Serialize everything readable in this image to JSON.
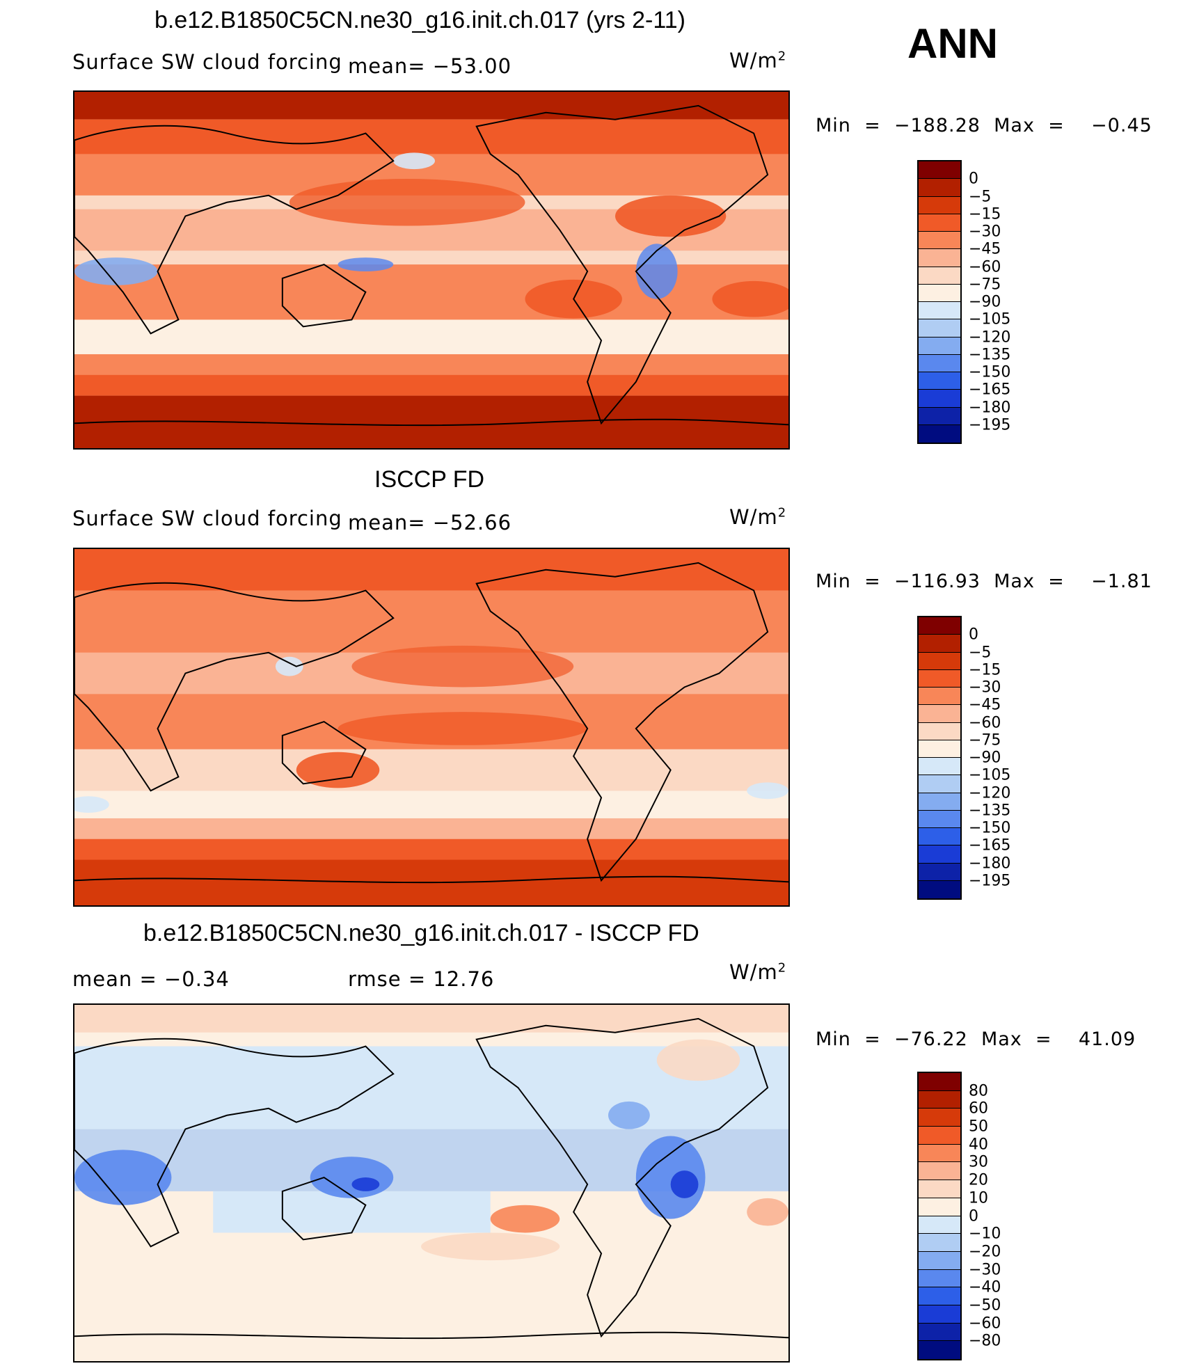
{
  "ann": "ANN",
  "units_base": "W/m",
  "units_exp": "2",
  "colors": {
    "abs_scale": [
      "#7f0000",
      "#b22000",
      "#d63a0a",
      "#f05a28",
      "#f88658",
      "#fab394",
      "#fbd9c4",
      "#fdf0e2",
      "#d6e8f8",
      "#b0cdf3",
      "#84acf0",
      "#5a88ee",
      "#2d5fe8",
      "#1a3cd6",
      "#0d22a8",
      "#000c80"
    ],
    "diff_scale": [
      "#7f0000",
      "#b22000",
      "#d63a0a",
      "#f05a28",
      "#f88658",
      "#fab394",
      "#fbd9c4",
      "#fdf0e2",
      "#d6e8f8",
      "#b0cdf3",
      "#84acf0",
      "#5a88ee",
      "#2d5fe8",
      "#1a3cd6",
      "#0d22a8",
      "#000c80"
    ]
  },
  "panels": [
    {
      "title": "b.e12.B1850C5CN.ne30_g16.init.ch.017 (yrs 2-11)",
      "left_label": "Surface SW cloud forcing",
      "stat_label": "mean=  −53.00",
      "minmax": "Min  =  −188.28  Max  =    −0.45",
      "levels": [
        "0",
        "−5",
        "−15",
        "−30",
        "−45",
        "−60",
        "−75",
        "−90",
        "−105",
        "−120",
        "−135",
        "−150",
        "−165",
        "−180",
        "−195"
      ]
    },
    {
      "title": "ISCCP FD",
      "left_label": "Surface SW cloud forcing",
      "stat_label": "mean=  −52.66",
      "minmax": "Min  =  −116.93  Max  =    −1.81",
      "levels": [
        "0",
        "−5",
        "−15",
        "−30",
        "−45",
        "−60",
        "−75",
        "−90",
        "−105",
        "−120",
        "−135",
        "−150",
        "−165",
        "−180",
        "−195"
      ]
    },
    {
      "title": "b.e12.B1850C5CN.ne30_g16.init.ch.017 - ISCCP FD",
      "left_label": "mean  =    −0.34",
      "stat_label": "rmse  =    12.76",
      "minmax": "Min  =  −76.22  Max  =    41.09",
      "levels": [
        "80",
        "60",
        "50",
        "40",
        "30",
        "20",
        "10",
        "0",
        "−10",
        "−20",
        "−30",
        "−40",
        "−50",
        "−60",
        "−80"
      ]
    }
  ]
}
